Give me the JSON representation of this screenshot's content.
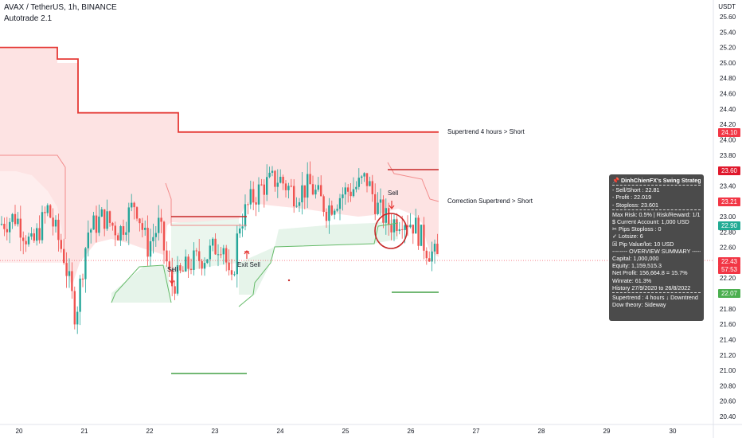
{
  "header": {
    "title": "AVAX / TetherUS, 1h, BINANCE",
    "indicator": "Autotrade 2.1"
  },
  "axis": {
    "unit": "USDT"
  },
  "price_labels": [
    {
      "value": "24.10",
      "color": "#f23645"
    },
    {
      "value": "23.60",
      "color": "#e0182c"
    },
    {
      "value": "23.21",
      "color": "#f23645"
    },
    {
      "value": "22.90",
      "color": "#22ab94"
    },
    {
      "value": "22.43",
      "color": "#f23645"
    },
    {
      "value": "57:53",
      "color": "#f23645"
    },
    {
      "value": "22.07",
      "color": "#4caf50"
    }
  ],
  "annotations": {
    "supertrend_label": "Supertrend 4 hours > Short",
    "correction_label": "Correction Supertrend  > Short",
    "sell_1": "Sell",
    "sell_2": "Sell",
    "exit_sell": "Exit Sell"
  },
  "panel": {
    "title": "DinhChienFX's Swing Strategy",
    "lines_a": [
      "- Sell/Short   : 22.81",
      "- Profit   : 22.019",
      "- Stoploss: 23.601"
    ],
    "lines_b": [
      "Max Risk: 0.5% | Risk/Reward: 1/1",
      "$ Current Account: 1,000 USD",
      "✂ Pips Stoploss : 0",
      "✓ Lotsize: 6",
      "☒ Pip Value/lot: 10 USD"
    ],
    "overview_title": "-------- OVERVIEW SUMMARY --------",
    "lines_c": [
      "Capital: 1,000,000",
      "Equity: 1,159,515.3",
      "Net Profit: 156,664.8 = 15.7%",
      "Winrate: 61.3%",
      "History 27/9/2020 to 26/8/2022"
    ],
    "lines_d": [
      "Supertrend : 4 hours  ↓  Downtrend",
      "Dow theory: Sideway"
    ]
  },
  "colors": {
    "up": "#26a69a",
    "down": "#ef5350",
    "supertrend": "#e53935",
    "fill_red": "#fde3e3",
    "fill_green": "#e6f4ea",
    "target": "#43a047"
  },
  "chart_data": {
    "type": "candlestick",
    "title": "AVAX / TetherUS, 1h, BINANCE",
    "ylabel": "USDT",
    "ylim": [
      20.4,
      25.6
    ],
    "y_ticks": [
      "25.60",
      "25.40",
      "25.20",
      "25.00",
      "24.80",
      "24.60",
      "24.40",
      "24.20",
      "24.00",
      "23.80",
      "23.60",
      "23.40",
      "23.20",
      "23.00",
      "22.80",
      "22.60",
      "22.40",
      "22.20",
      "22.00",
      "21.80",
      "21.60",
      "21.40",
      "21.20",
      "21.00",
      "20.80",
      "20.60",
      "20.40"
    ],
    "x_ticks": [
      "20",
      "21",
      "22",
      "23",
      "24",
      "25",
      "26",
      "27",
      "28",
      "29",
      "30"
    ],
    "supertrend_4h": [
      [
        0,
        25.2
      ],
      [
        72,
        25.2
      ],
      [
        72,
        25.05
      ],
      [
        98,
        25.05
      ],
      [
        98,
        24.35
      ],
      [
        224,
        24.35
      ],
      [
        224,
        24.1
      ],
      [
        551,
        24.1
      ]
    ],
    "last_price": 22.43,
    "levels": {
      "sell_short": 22.81,
      "profit": 22.019,
      "stoploss": 23.601
    }
  }
}
